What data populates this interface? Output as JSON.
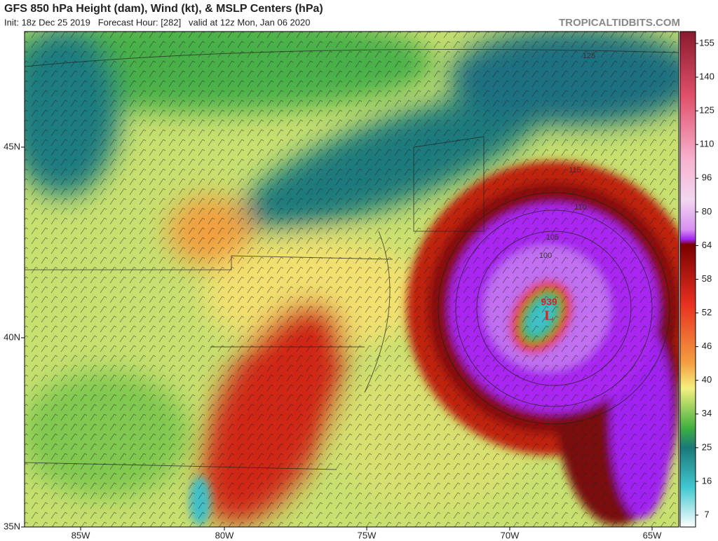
{
  "header": {
    "title": "GFS 850 hPa Height (dam), Wind (kt), & MSLP Centers (hPa)",
    "subtitle": "Init: 18z Dec 25 2019   Forecast Hour: [282]   valid at 12z Mon, Jan 06 2020",
    "credit": "TROPICALTIDBITS.COM"
  },
  "map": {
    "latitude_labels": [
      "45N",
      "40N",
      "35N"
    ],
    "longitude_labels": [
      "85W",
      "80W",
      "75W",
      "70W",
      "65W"
    ],
    "contour_labels": [
      "125",
      "115",
      "110",
      "105",
      "100"
    ],
    "low_center": {
      "pressure": "939",
      "symbol": "L"
    }
  },
  "colorbar": {
    "labels": [
      "155",
      "140",
      "125",
      "110",
      "96",
      "80",
      "64",
      "58",
      "52",
      "46",
      "40",
      "34",
      "25",
      "16",
      "7"
    ]
  }
}
